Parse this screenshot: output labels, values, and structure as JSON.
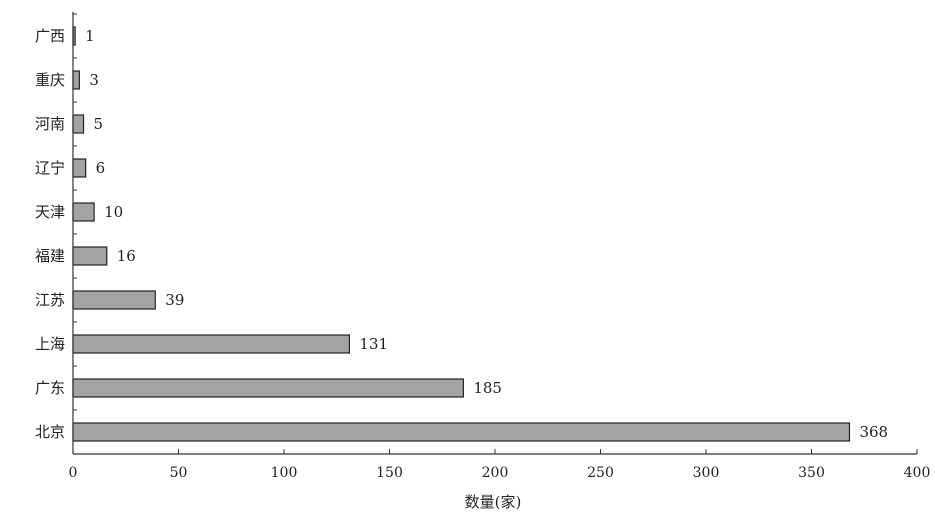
{
  "chart_data": {
    "type": "bar",
    "orientation": "horizontal",
    "categories": [
      "广西",
      "重庆",
      "河南",
      "辽宁",
      "天津",
      "福建",
      "江苏",
      "上海",
      "广东",
      "北京"
    ],
    "values": [
      1,
      3,
      5,
      6,
      10,
      16,
      39,
      131,
      185,
      368
    ],
    "xlabel": "数量(家)",
    "ylabel": "",
    "xlim": [
      0,
      400
    ],
    "xticks": [
      0,
      50,
      100,
      150,
      200,
      250,
      300,
      350,
      400
    ],
    "grid": false,
    "colors": {
      "bar_fill": "#a3a3a3",
      "bar_stroke": "#222222"
    }
  }
}
